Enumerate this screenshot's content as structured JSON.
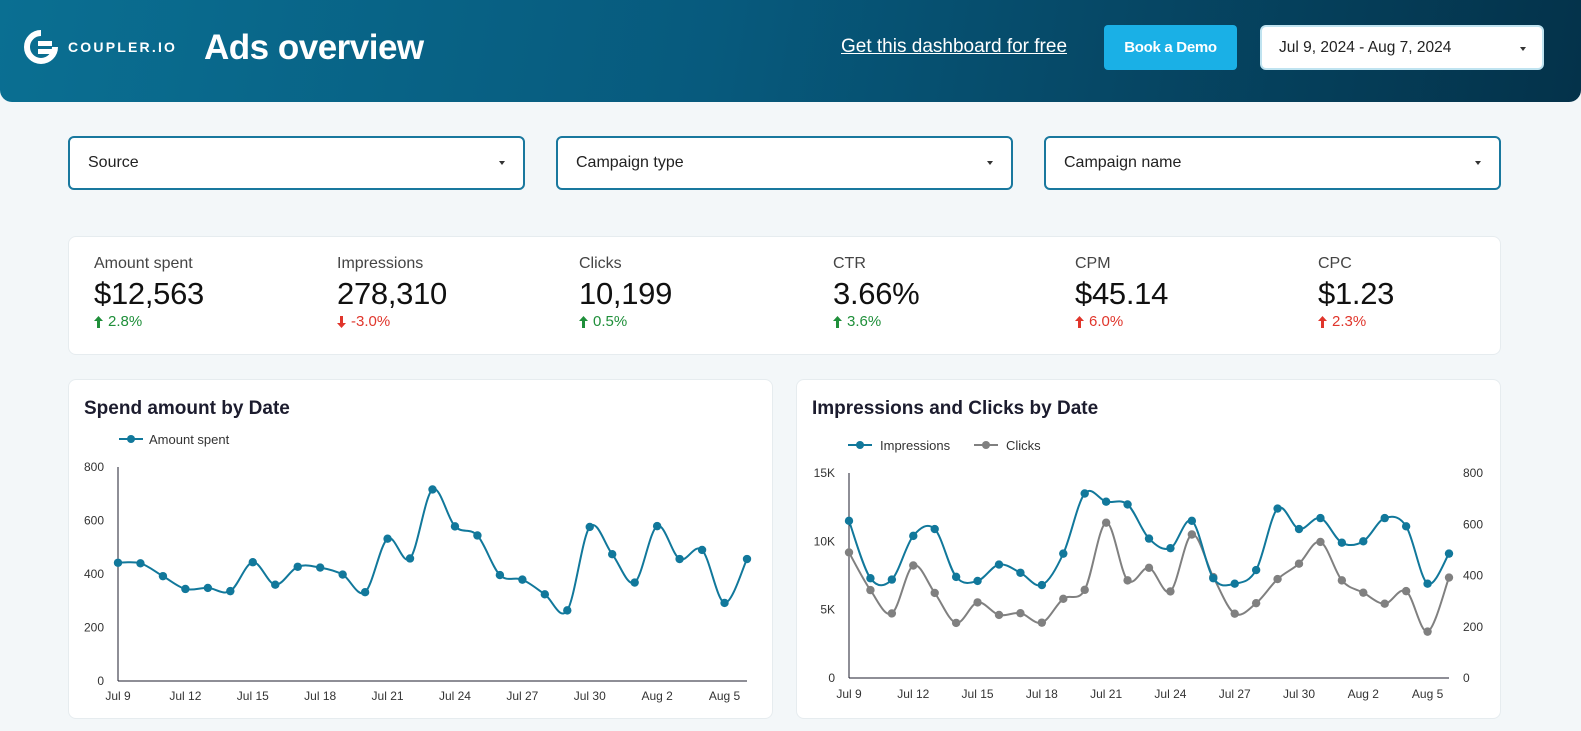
{
  "header": {
    "logo_text": "COUPLER.IO",
    "title": "Ads overview",
    "free_link": "Get this dashboard for free",
    "demo_button": "Book a Demo",
    "date_range": "Jul 9, 2024 - Aug 7, 2024",
    "gradient_start": "#0a6f92",
    "gradient_end": "#04324a",
    "button_color": "#1ab0e6"
  },
  "filters": [
    {
      "label": "Source"
    },
    {
      "label": "Campaign type"
    },
    {
      "label": "Campaign name"
    }
  ],
  "kpis": [
    {
      "label": "Amount spent",
      "value": "$12,563",
      "delta": "2.8%",
      "direction": "up",
      "status": "good"
    },
    {
      "label": "Impressions",
      "value": "278,310",
      "delta": "-3.0%",
      "direction": "down",
      "status": "bad"
    },
    {
      "label": "Clicks",
      "value": "10,199",
      "delta": "0.5%",
      "direction": "up",
      "status": "good"
    },
    {
      "label": "CTR",
      "value": "3.66%",
      "delta": "3.6%",
      "direction": "up",
      "status": "good"
    },
    {
      "label": "CPM",
      "value": "$45.14",
      "delta": "6.0%",
      "direction": "up",
      "status": "bad"
    },
    {
      "label": "CPC",
      "value": "$1.23",
      "delta": "2.3%",
      "direction": "up",
      "status": "bad"
    }
  ],
  "colors": {
    "series_primary": "#11789b",
    "series_secondary": "#808080",
    "good": "#1f8f3a",
    "bad": "#e0352b",
    "filter_border": "#19789e"
  },
  "chart_data": [
    {
      "type": "line",
      "title": "Spend amount by Date",
      "legend_position": "top-left",
      "x_tick_labels": [
        "Jul 9",
        "Jul 12",
        "Jul 15",
        "Jul 18",
        "Jul 21",
        "Jul 24",
        "Jul 27",
        "Jul 30",
        "Aug 2",
        "Aug 5"
      ],
      "y_ticks": [
        0,
        200,
        400,
        600,
        800
      ],
      "ylim": [
        0,
        800
      ],
      "x": [
        "Jul 9",
        "Jul 10",
        "Jul 11",
        "Jul 12",
        "Jul 13",
        "Jul 14",
        "Jul 15",
        "Jul 16",
        "Jul 17",
        "Jul 18",
        "Jul 19",
        "Jul 20",
        "Jul 21",
        "Jul 22",
        "Jul 23",
        "Jul 24",
        "Jul 25",
        "Jul 26",
        "Jul 27",
        "Jul 28",
        "Jul 29",
        "Jul 30",
        "Jul 31",
        "Aug 1",
        "Aug 2",
        "Aug 3",
        "Aug 4",
        "Aug 5",
        "Aug 6"
      ],
      "series": [
        {
          "name": "Amount spent",
          "values": [
            442,
            440,
            392,
            344,
            348,
            336,
            444,
            360,
            427,
            424,
            398,
            332,
            532,
            458,
            716,
            578,
            544,
            396,
            379,
            324,
            264,
            576,
            474,
            368,
            579,
            456,
            490,
            292,
            456
          ]
        }
      ]
    },
    {
      "type": "line",
      "title": "Impressions and Clicks by Date",
      "legend_position": "top-left",
      "x_tick_labels": [
        "Jul 9",
        "Jul 12",
        "Jul 15",
        "Jul 18",
        "Jul 21",
        "Jul 24",
        "Jul 27",
        "Jul 30",
        "Aug 2",
        "Aug 5"
      ],
      "y_left_ticks": [
        "0",
        "5K",
        "10K",
        "15K"
      ],
      "y_right_ticks": [
        0,
        200,
        400,
        600,
        800
      ],
      "ylim_left": [
        0,
        15000
      ],
      "ylim_right": [
        0,
        800
      ],
      "x": [
        "Jul 9",
        "Jul 10",
        "Jul 11",
        "Jul 12",
        "Jul 13",
        "Jul 14",
        "Jul 15",
        "Jul 16",
        "Jul 17",
        "Jul 18",
        "Jul 19",
        "Jul 20",
        "Jul 21",
        "Jul 22",
        "Jul 23",
        "Jul 24",
        "Jul 25",
        "Jul 26",
        "Jul 27",
        "Jul 28",
        "Jul 29",
        "Jul 30",
        "Jul 31",
        "Aug 1",
        "Aug 2",
        "Aug 3",
        "Aug 4",
        "Aug 5",
        "Aug 6"
      ],
      "series": [
        {
          "name": "Impressions",
          "axis": "left",
          "values": [
            11500,
            7300,
            7200,
            10400,
            10900,
            7400,
            7100,
            8300,
            7700,
            6800,
            9100,
            13500,
            12900,
            12700,
            10200,
            9500,
            11500,
            7300,
            6900,
            7900,
            12400,
            10900,
            11700,
            9900,
            10000,
            11700,
            11100,
            6900,
            9100
          ]
        },
        {
          "name": "Clicks",
          "axis": "right",
          "values": [
            490,
            343,
            252,
            439,
            332,
            215,
            295,
            246,
            253,
            216,
            309,
            344,
            606,
            381,
            430,
            338,
            560,
            394,
            251,
            292,
            386,
            446,
            531,
            381,
            333,
            290,
            339,
            181,
            392
          ]
        }
      ]
    }
  ]
}
